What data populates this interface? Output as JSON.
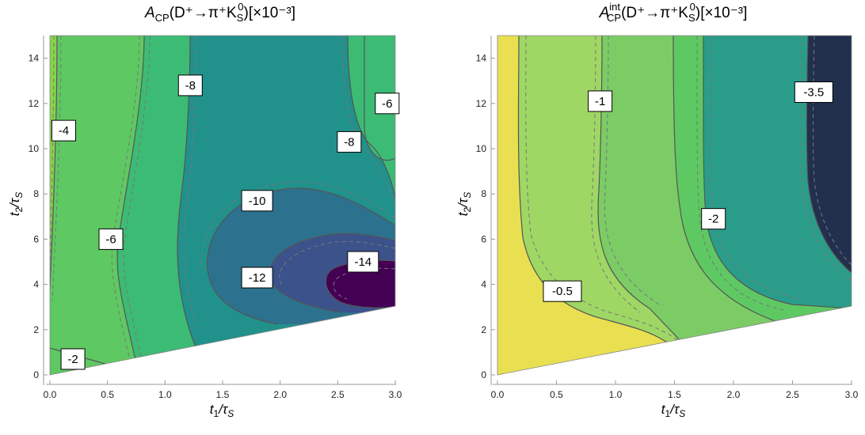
{
  "chart_data": [
    {
      "type": "contour",
      "title_parts": {
        "base": "A",
        "sub": "CP",
        "sup": "",
        "process": "(D⁺→π⁺K",
        "process_sub": "S",
        "process_sup": "0",
        "tail": ")[×10⁻³]"
      },
      "xlabel": "t₁/τS",
      "ylabel": "t₂/τS",
      "x_ticks": [
        "0.0",
        "0.5",
        "1.0",
        "1.5",
        "2.0",
        "2.5",
        "3.0"
      ],
      "y_ticks": [
        "0",
        "2",
        "4",
        "6",
        "8",
        "10",
        "12",
        "14"
      ],
      "xlim": [
        0,
        3
      ],
      "ylim": [
        0,
        15
      ],
      "region": "t2 >= 0.2 + 0.967*t1",
      "contour_levels": [
        -2,
        -4,
        -6,
        -8,
        -10,
        -12,
        -14
      ],
      "contour_labels": [
        {
          "text": "-2",
          "x": 0.2,
          "y": 0.7
        },
        {
          "text": "-4",
          "x": 0.12,
          "y": 10.8
        },
        {
          "text": "-6",
          "x": 0.53,
          "y": 6.0
        },
        {
          "text": "-8",
          "x": 1.22,
          "y": 12.8
        },
        {
          "text": "-8",
          "x": 2.6,
          "y": 10.3
        },
        {
          "text": "-6",
          "x": 2.93,
          "y": 12.0
        },
        {
          "text": "-10",
          "x": 1.8,
          "y": 7.7
        },
        {
          "text": "-12",
          "x": 1.8,
          "y": 4.3
        },
        {
          "text": "-14",
          "x": 2.72,
          "y": 5.0
        }
      ],
      "colors": [
        "#87d449",
        "#5ec962",
        "#3cbb75",
        "#21918c",
        "#2c728e",
        "#3b528b",
        "#472d7b",
        "#440154"
      ]
    },
    {
      "type": "contour",
      "title_parts": {
        "base": "A",
        "sub": "CP",
        "sup": "int",
        "process": "(D⁺→π⁺K",
        "process_sub": "S",
        "process_sup": "0",
        "tail": ")[×10⁻³]"
      },
      "xlabel": "t₁/τS",
      "ylabel": "t₂/τS",
      "x_ticks": [
        "0.0",
        "0.5",
        "1.0",
        "1.5",
        "2.0",
        "2.5",
        "3.0"
      ],
      "y_ticks": [
        "0",
        "2",
        "4",
        "6",
        "8",
        "10",
        "12",
        "14"
      ],
      "xlim": [
        0,
        3
      ],
      "ylim": [
        0,
        15
      ],
      "region": "t2 >= 0.2 + 0.967*t1",
      "contour_levels": [
        -0.5,
        -1,
        -1.5,
        -2,
        -3.5
      ],
      "contour_labels": [
        {
          "text": "-0.5",
          "x": 0.55,
          "y": 3.7
        },
        {
          "text": "-1",
          "x": 0.87,
          "y": 12.1
        },
        {
          "text": "-2",
          "x": 1.83,
          "y": 6.9
        },
        {
          "text": "-3.5",
          "x": 2.68,
          "y": 12.5
        }
      ],
      "colors": [
        "#e8e050",
        "#9fd764",
        "#7bcc65",
        "#5ec962",
        "#2a9d8a",
        "#22304e"
      ]
    }
  ]
}
